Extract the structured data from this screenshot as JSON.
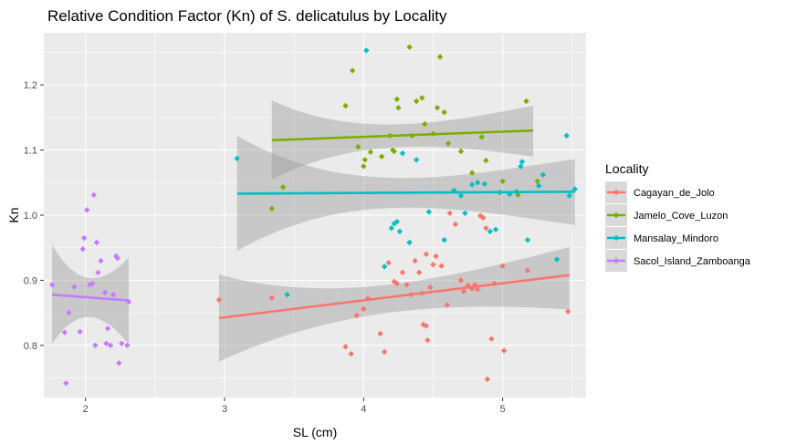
{
  "chart_data": {
    "type": "scatter",
    "title": "Relative Condition Factor (Kn) of S. delicatulus by Locality",
    "xlabel": "SL (cm)",
    "ylabel": "Kn",
    "xlim": [
      1.7,
      5.6
    ],
    "ylim": [
      0.72,
      1.28
    ],
    "x_ticks": [
      2,
      3,
      4,
      5
    ],
    "y_ticks": [
      0.8,
      0.9,
      1.0,
      1.1,
      1.2
    ],
    "x_tick_labels": [
      "2",
      "3",
      "4",
      "5"
    ],
    "y_tick_labels": [
      "0.8",
      "0.9",
      "1.0",
      "1.1",
      "1.2"
    ],
    "grid": true,
    "legend_title": "Locality",
    "legend_position": "right",
    "series": [
      {
        "name": "Cagayan_de_Jolo",
        "color": "#F8766D",
        "points": [
          [
            2.96,
            0.87
          ],
          [
            3.34,
            0.873
          ],
          [
            3.87,
            0.798
          ],
          [
            3.91,
            0.787
          ],
          [
            3.95,
            0.846
          ],
          [
            4.0,
            0.856
          ],
          [
            4.03,
            0.872
          ],
          [
            4.12,
            0.818
          ],
          [
            4.15,
            0.79
          ],
          [
            4.18,
            0.927
          ],
          [
            4.22,
            0.898
          ],
          [
            4.24,
            0.895
          ],
          [
            4.28,
            0.912
          ],
          [
            4.31,
            0.893
          ],
          [
            4.34,
            0.878
          ],
          [
            4.37,
            0.93
          ],
          [
            4.4,
            0.912
          ],
          [
            4.42,
            0.88
          ],
          [
            4.43,
            0.832
          ],
          [
            4.45,
            0.83
          ],
          [
            4.45,
            0.94
          ],
          [
            4.46,
            0.808
          ],
          [
            4.48,
            0.889
          ],
          [
            4.5,
            0.924
          ],
          [
            4.52,
            0.937
          ],
          [
            4.56,
            0.922
          ],
          [
            4.6,
            0.862
          ],
          [
            4.62,
            1.003
          ],
          [
            4.66,
            0.986
          ],
          [
            4.7,
            0.9
          ],
          [
            4.72,
            0.883
          ],
          [
            4.75,
            0.892
          ],
          [
            4.78,
            0.887
          ],
          [
            4.8,
            0.893
          ],
          [
            4.82,
            0.886
          ],
          [
            4.84,
            0.999
          ],
          [
            4.86,
            0.996
          ],
          [
            4.88,
            0.98
          ],
          [
            4.89,
            0.748
          ],
          [
            4.92,
            0.81
          ],
          [
            4.94,
            0.895
          ],
          [
            5.0,
            0.922
          ],
          [
            5.01,
            0.792
          ],
          [
            5.18,
            0.915
          ],
          [
            5.47,
            0.852
          ]
        ],
        "fit": {
          "x": [
            2.96,
            5.48
          ],
          "y": [
            0.842,
            0.908
          ],
          "ci_lower": [
            0.775,
            0.855
          ],
          "ci_upper": [
            0.909,
            0.951
          ]
        }
      },
      {
        "name": "Jamelo_Cove_Luzon",
        "color": "#7CAE00",
        "points": [
          [
            3.34,
            1.01
          ],
          [
            3.42,
            1.043
          ],
          [
            3.87,
            1.168
          ],
          [
            3.92,
            1.222
          ],
          [
            3.96,
            1.105
          ],
          [
            4.0,
            1.075
          ],
          [
            4.01,
            1.085
          ],
          [
            4.05,
            1.097
          ],
          [
            4.13,
            1.09
          ],
          [
            4.19,
            1.122
          ],
          [
            4.21,
            1.1
          ],
          [
            4.22,
            1.098
          ],
          [
            4.24,
            1.178
          ],
          [
            4.25,
            1.165
          ],
          [
            4.33,
            1.258
          ],
          [
            4.35,
            1.122
          ],
          [
            4.38,
            1.175
          ],
          [
            4.42,
            1.18
          ],
          [
            4.44,
            1.14
          ],
          [
            4.5,
            1.125
          ],
          [
            4.53,
            1.165
          ],
          [
            4.55,
            1.243
          ],
          [
            4.58,
            1.158
          ],
          [
            4.61,
            1.11
          ],
          [
            4.7,
            1.098
          ],
          [
            4.78,
            1.065
          ],
          [
            4.85,
            1.12
          ],
          [
            4.88,
            1.084
          ],
          [
            5.0,
            1.052
          ],
          [
            5.11,
            1.031
          ],
          [
            5.17,
            1.175
          ],
          [
            5.25,
            1.052
          ]
        ],
        "fit": {
          "x": [
            3.34,
            5.22
          ],
          "y": [
            1.115,
            1.13
          ],
          "ci_lower": [
            1.055,
            1.09
          ],
          "ci_upper": [
            1.176,
            1.168
          ]
        }
      },
      {
        "name": "Mansalay_Mindoro",
        "color": "#00BFC4",
        "points": [
          [
            3.09,
            1.087
          ],
          [
            3.45,
            0.878
          ],
          [
            4.02,
            1.253
          ],
          [
            4.15,
            0.921
          ],
          [
            4.2,
            0.98
          ],
          [
            4.22,
            0.987
          ],
          [
            4.24,
            0.99
          ],
          [
            4.26,
            0.975
          ],
          [
            4.28,
            1.095
          ],
          [
            4.33,
            0.958
          ],
          [
            4.38,
            1.085
          ],
          [
            4.47,
            1.005
          ],
          [
            4.58,
            0.962
          ],
          [
            4.65,
            1.038
          ],
          [
            4.7,
            1.03
          ],
          [
            4.73,
            1.003
          ],
          [
            4.78,
            1.047
          ],
          [
            4.82,
            1.05
          ],
          [
            4.87,
            1.048
          ],
          [
            4.91,
            0.975
          ],
          [
            4.95,
            0.978
          ],
          [
            4.98,
            1.035
          ],
          [
            5.05,
            1.032
          ],
          [
            5.1,
            1.036
          ],
          [
            5.13,
            1.075
          ],
          [
            5.14,
            1.082
          ],
          [
            5.18,
            0.962
          ],
          [
            5.26,
            1.045
          ],
          [
            5.29,
            1.062
          ],
          [
            5.39,
            0.932
          ],
          [
            5.46,
            1.122
          ],
          [
            5.48,
            1.03
          ],
          [
            5.52,
            1.04
          ]
        ],
        "fit": {
          "x": [
            3.09,
            5.52
          ],
          "y": [
            1.033,
            1.036
          ],
          "ci_lower": [
            0.945,
            0.985
          ],
          "ci_upper": [
            1.122,
            1.086
          ]
        }
      },
      {
        "name": "Sacol_Island_Zamboanga",
        "color": "#C77CFF",
        "points": [
          [
            1.76,
            0.893
          ],
          [
            1.85,
            0.82
          ],
          [
            1.86,
            0.742
          ],
          [
            1.88,
            0.85
          ],
          [
            1.92,
            0.89
          ],
          [
            1.96,
            0.821
          ],
          [
            1.98,
            0.948
          ],
          [
            1.99,
            0.965
          ],
          [
            2.01,
            1.008
          ],
          [
            2.03,
            0.893
          ],
          [
            2.05,
            0.895
          ],
          [
            2.06,
            1.031
          ],
          [
            2.07,
            0.8
          ],
          [
            2.08,
            0.958
          ],
          [
            2.09,
            0.912
          ],
          [
            2.11,
            0.93
          ],
          [
            2.14,
            0.881
          ],
          [
            2.15,
            0.803
          ],
          [
            2.16,
            0.826
          ],
          [
            2.18,
            0.8
          ],
          [
            2.2,
            0.878
          ],
          [
            2.22,
            0.937
          ],
          [
            2.23,
            0.934
          ],
          [
            2.24,
            0.773
          ],
          [
            2.26,
            0.803
          ],
          [
            2.3,
            0.8
          ],
          [
            2.31,
            0.867
          ]
        ],
        "fit": {
          "x": [
            1.76,
            2.31
          ],
          "y": [
            0.878,
            0.869
          ],
          "ci_lower": [
            0.802,
            0.802
          ],
          "ci_upper": [
            0.955,
            0.935
          ]
        }
      }
    ]
  }
}
